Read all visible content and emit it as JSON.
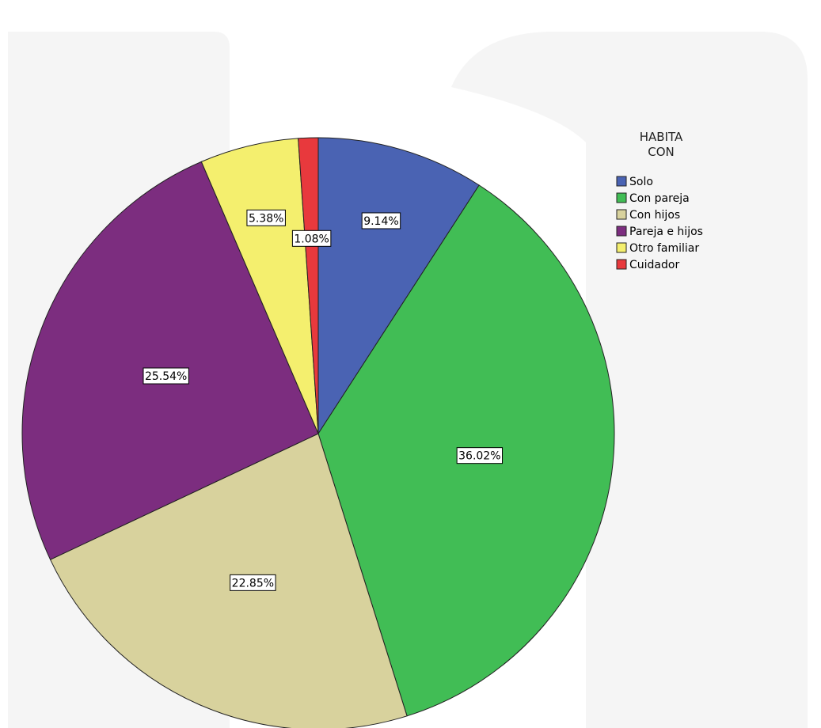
{
  "chart_data": {
    "type": "pie",
    "legend_title": "HABITA CON",
    "categories": [
      "Solo",
      "Con pareja",
      "Con hijos",
      "Pareja e hijos",
      "Otro familiar",
      "Cuidador"
    ],
    "values": [
      9.14,
      36.02,
      22.85,
      25.54,
      5.38,
      1.08
    ],
    "value_labels": [
      "9.14%",
      "36.02%",
      "22.85%",
      "25.54%",
      "5.38%",
      "1.08%"
    ],
    "colors": [
      "#4a63b3",
      "#41bd55",
      "#d8d29d",
      "#7c2d7f",
      "#f4ef6e",
      "#e8393d"
    ],
    "legend_position": "upper right"
  }
}
